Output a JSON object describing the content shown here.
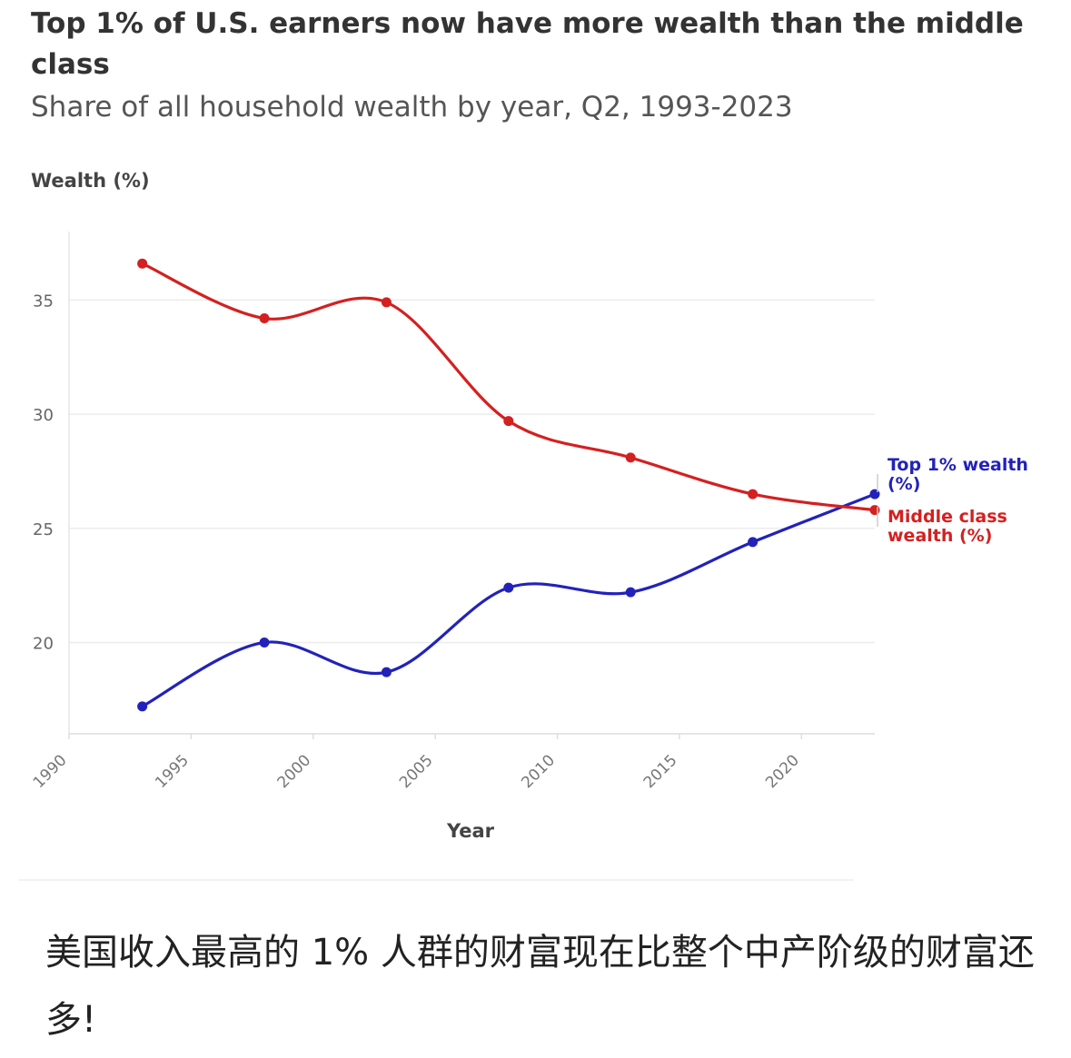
{
  "chart_data": {
    "type": "line",
    "title": "Top 1% of U.S. earners now have more wealth than the middle class",
    "subtitle": "Share of all household wealth by year, Q2, 1993-2023",
    "xlabel": "Year",
    "ylabel": "Wealth (%)",
    "xlim": [
      1990,
      2023
    ],
    "ylim": [
      16,
      38
    ],
    "x_ticks": [
      "1990",
      "1995",
      "2000",
      "2005",
      "2010",
      "2015",
      "2020"
    ],
    "y_ticks": [
      "20",
      "25",
      "30",
      "35"
    ],
    "grid": true,
    "legend": "direct labels at right end of lines",
    "x": [
      1993,
      1998,
      2003,
      2008,
      2013,
      2018,
      2023
    ],
    "series": [
      {
        "name": "Top 1% wealth (%)",
        "label_lines": [
          "Top 1% wealth",
          "(%)"
        ],
        "color": "#2222bb",
        "values": [
          17.2,
          20.0,
          18.7,
          22.4,
          22.2,
          24.4,
          26.5
        ]
      },
      {
        "name": "Middle class wealth (%)",
        "label_lines": [
          "Middle class",
          "wealth (%)"
        ],
        "color": "#d42020",
        "values": [
          36.6,
          34.2,
          34.9,
          29.7,
          28.1,
          26.5,
          25.8
        ]
      }
    ]
  },
  "caption": "美国收入最高的 1% 人群的财富现在比整个中产阶级的财富还多!"
}
